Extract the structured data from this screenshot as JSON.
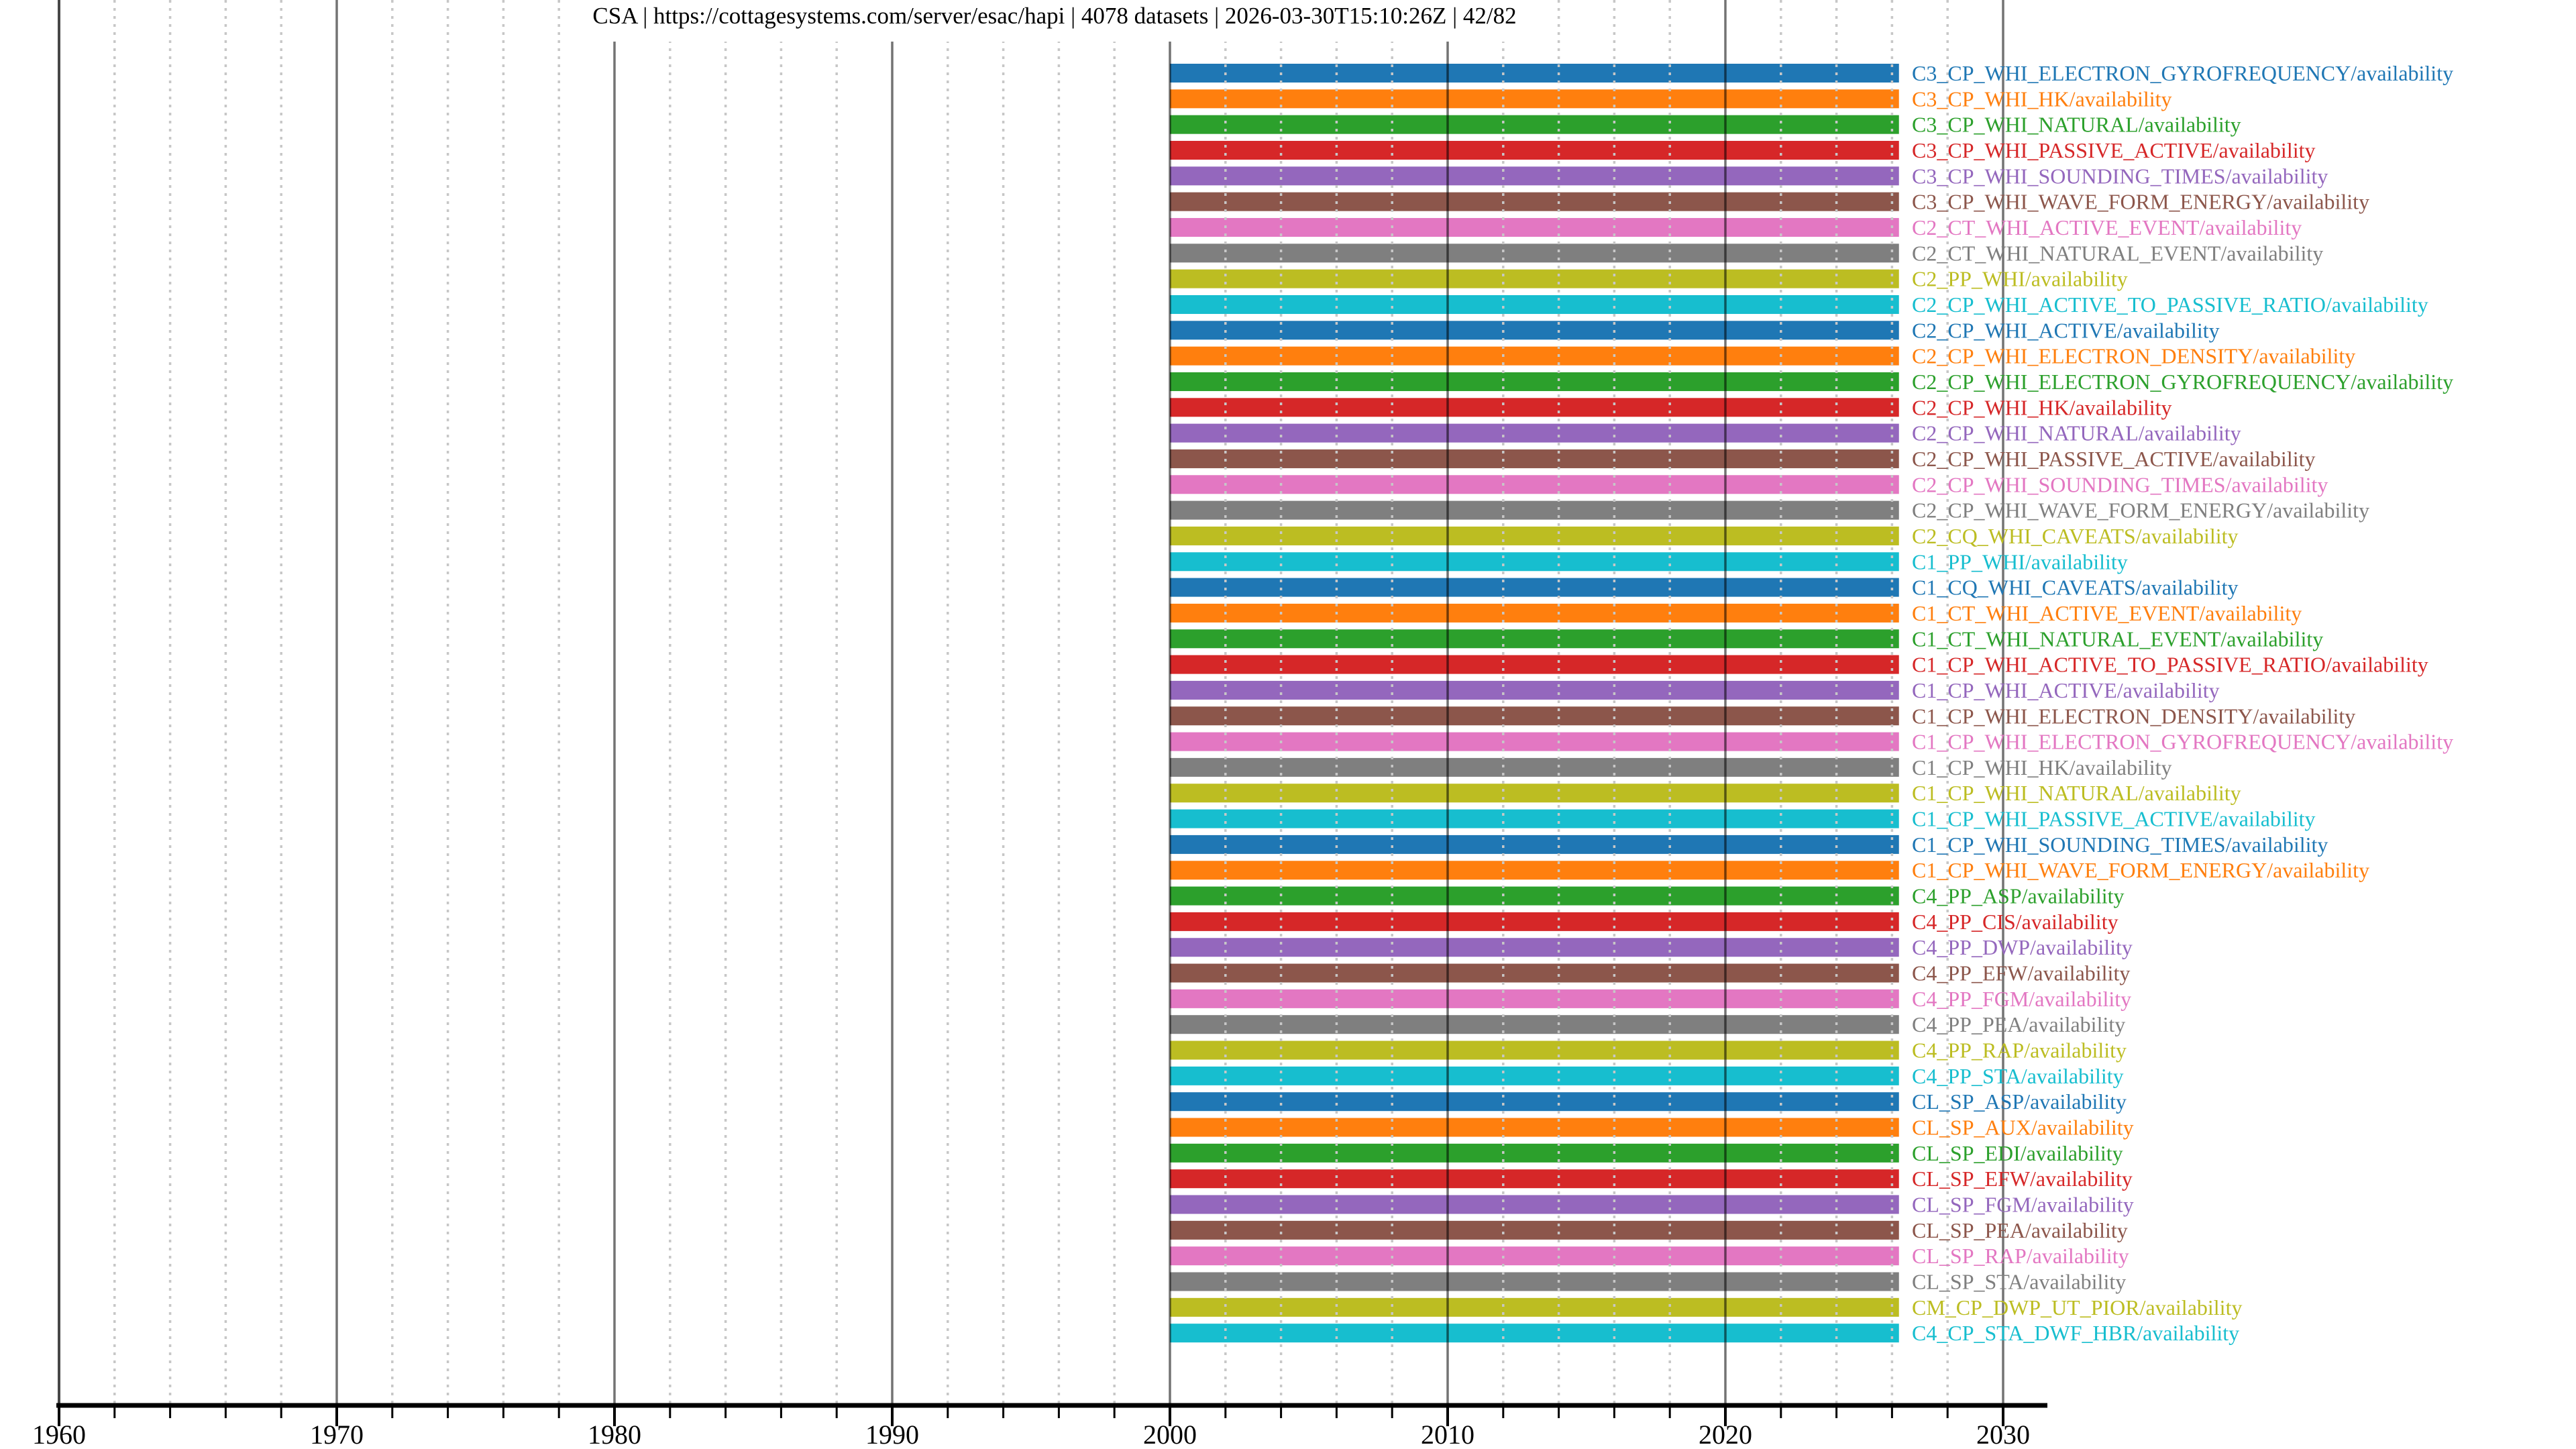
{
  "header": {
    "title": "CSA | https://cottagesystems.com/server/esac/hapi | 4078 datasets | 2026-03-30T15:10:26Z | 42/82",
    "source_label": "CSA",
    "server_url": "https://cottagesystems.com/server/esac/hapi",
    "dataset_count": "4078 datasets",
    "timestamp": "2026-03-30T15:10:26Z",
    "progress": "42/82"
  },
  "chart_data": {
    "type": "bar",
    "subtype": "horizontal-availability-timeline",
    "title": "CSA | https://cottagesystems.com/server/esac/hapi | 4078 datasets | 2026-03-30T15:10:26Z | 42/82",
    "xlabel": "",
    "ylabel": "",
    "xlim": [
      1960,
      2031.6
    ],
    "x_major_ticks": [
      "1960",
      "1970",
      "1980",
      "1990",
      "2000",
      "2010",
      "2020",
      "2030"
    ],
    "x_minor_tick_step_years": 2,
    "grid": "major vertical solid gray, minor vertical dotted light gray, drawn over bars",
    "legend_position": "none",
    "bar_start_year": 2000.0,
    "bar_end_year": 2026.25,
    "palette_tab10": [
      "#1f77b4",
      "#ff7f0e",
      "#2ca02c",
      "#d62728",
      "#9467bd",
      "#8c564b",
      "#e377c2",
      "#7f7f7f",
      "#bcbd22",
      "#17becf"
    ],
    "rows": [
      {
        "label": "C3_CP_WHI_ELECTRON_GYROFREQUENCY/availability",
        "color": "#1f77b4",
        "start": 2000.0,
        "end": 2026.25
      },
      {
        "label": "C3_CP_WHI_HK/availability",
        "color": "#ff7f0e",
        "start": 2000.0,
        "end": 2026.25
      },
      {
        "label": "C3_CP_WHI_NATURAL/availability",
        "color": "#2ca02c",
        "start": 2000.0,
        "end": 2026.25
      },
      {
        "label": "C3_CP_WHI_PASSIVE_ACTIVE/availability",
        "color": "#d62728",
        "start": 2000.0,
        "end": 2026.25
      },
      {
        "label": "C3_CP_WHI_SOUNDING_TIMES/availability",
        "color": "#9467bd",
        "start": 2000.0,
        "end": 2026.25
      },
      {
        "label": "C3_CP_WHI_WAVE_FORM_ENERGY/availability",
        "color": "#8c564b",
        "start": 2000.0,
        "end": 2026.25
      },
      {
        "label": "C2_CT_WHI_ACTIVE_EVENT/availability",
        "color": "#e377c2",
        "start": 2000.0,
        "end": 2026.25
      },
      {
        "label": "C2_CT_WHI_NATURAL_EVENT/availability",
        "color": "#7f7f7f",
        "start": 2000.0,
        "end": 2026.25
      },
      {
        "label": "C2_PP_WHI/availability",
        "color": "#bcbd22",
        "start": 2000.0,
        "end": 2026.25
      },
      {
        "label": "C2_CP_WHI_ACTIVE_TO_PASSIVE_RATIO/availability",
        "color": "#17becf",
        "start": 2000.0,
        "end": 2026.25
      },
      {
        "label": "C2_CP_WHI_ACTIVE/availability",
        "color": "#1f77b4",
        "start": 2000.0,
        "end": 2026.25
      },
      {
        "label": "C2_CP_WHI_ELECTRON_DENSITY/availability",
        "color": "#ff7f0e",
        "start": 2000.0,
        "end": 2026.25
      },
      {
        "label": "C2_CP_WHI_ELECTRON_GYROFREQUENCY/availability",
        "color": "#2ca02c",
        "start": 2000.0,
        "end": 2026.25
      },
      {
        "label": "C2_CP_WHI_HK/availability",
        "color": "#d62728",
        "start": 2000.0,
        "end": 2026.25
      },
      {
        "label": "C2_CP_WHI_NATURAL/availability",
        "color": "#9467bd",
        "start": 2000.0,
        "end": 2026.25
      },
      {
        "label": "C2_CP_WHI_PASSIVE_ACTIVE/availability",
        "color": "#8c564b",
        "start": 2000.0,
        "end": 2026.25
      },
      {
        "label": "C2_CP_WHI_SOUNDING_TIMES/availability",
        "color": "#e377c2",
        "start": 2000.0,
        "end": 2026.25
      },
      {
        "label": "C2_CP_WHI_WAVE_FORM_ENERGY/availability",
        "color": "#7f7f7f",
        "start": 2000.0,
        "end": 2026.25
      },
      {
        "label": "C2_CQ_WHI_CAVEATS/availability",
        "color": "#bcbd22",
        "start": 2000.0,
        "end": 2026.25
      },
      {
        "label": "C1_PP_WHI/availability",
        "color": "#17becf",
        "start": 2000.0,
        "end": 2026.25
      },
      {
        "label": "C1_CQ_WHI_CAVEATS/availability",
        "color": "#1f77b4",
        "start": 2000.0,
        "end": 2026.25
      },
      {
        "label": "C1_CT_WHI_ACTIVE_EVENT/availability",
        "color": "#ff7f0e",
        "start": 2000.0,
        "end": 2026.25
      },
      {
        "label": "C1_CT_WHI_NATURAL_EVENT/availability",
        "color": "#2ca02c",
        "start": 2000.0,
        "end": 2026.25
      },
      {
        "label": "C1_CP_WHI_ACTIVE_TO_PASSIVE_RATIO/availability",
        "color": "#d62728",
        "start": 2000.0,
        "end": 2026.25
      },
      {
        "label": "C1_CP_WHI_ACTIVE/availability",
        "color": "#9467bd",
        "start": 2000.0,
        "end": 2026.25
      },
      {
        "label": "C1_CP_WHI_ELECTRON_DENSITY/availability",
        "color": "#8c564b",
        "start": 2000.0,
        "end": 2026.25
      },
      {
        "label": "C1_CP_WHI_ELECTRON_GYROFREQUENCY/availability",
        "color": "#e377c2",
        "start": 2000.0,
        "end": 2026.25
      },
      {
        "label": "C1_CP_WHI_HK/availability",
        "color": "#7f7f7f",
        "start": 2000.0,
        "end": 2026.25
      },
      {
        "label": "C1_CP_WHI_NATURAL/availability",
        "color": "#bcbd22",
        "start": 2000.0,
        "end": 2026.25
      },
      {
        "label": "C1_CP_WHI_PASSIVE_ACTIVE/availability",
        "color": "#17becf",
        "start": 2000.0,
        "end": 2026.25
      },
      {
        "label": "C1_CP_WHI_SOUNDING_TIMES/availability",
        "color": "#1f77b4",
        "start": 2000.0,
        "end": 2026.25
      },
      {
        "label": "C1_CP_WHI_WAVE_FORM_ENERGY/availability",
        "color": "#ff7f0e",
        "start": 2000.0,
        "end": 2026.25
      },
      {
        "label": "C4_PP_ASP/availability",
        "color": "#2ca02c",
        "start": 2000.0,
        "end": 2026.25
      },
      {
        "label": "C4_PP_CIS/availability",
        "color": "#d62728",
        "start": 2000.0,
        "end": 2026.25
      },
      {
        "label": "C4_PP_DWP/availability",
        "color": "#9467bd",
        "start": 2000.0,
        "end": 2026.25
      },
      {
        "label": "C4_PP_EFW/availability",
        "color": "#8c564b",
        "start": 2000.0,
        "end": 2026.25
      },
      {
        "label": "C4_PP_FGM/availability",
        "color": "#e377c2",
        "start": 2000.0,
        "end": 2026.25
      },
      {
        "label": "C4_PP_PEA/availability",
        "color": "#7f7f7f",
        "start": 2000.0,
        "end": 2026.25
      },
      {
        "label": "C4_PP_RAP/availability",
        "color": "#bcbd22",
        "start": 2000.0,
        "end": 2026.25
      },
      {
        "label": "C4_PP_STA/availability",
        "color": "#17becf",
        "start": 2000.0,
        "end": 2026.25
      },
      {
        "label": "CL_SP_ASP/availability",
        "color": "#1f77b4",
        "start": 2000.0,
        "end": 2026.25
      },
      {
        "label": "CL_SP_AUX/availability",
        "color": "#ff7f0e",
        "start": 2000.0,
        "end": 2026.25
      },
      {
        "label": "CL_SP_EDI/availability",
        "color": "#2ca02c",
        "start": 2000.0,
        "end": 2026.25
      },
      {
        "label": "CL_SP_EFW/availability",
        "color": "#d62728",
        "start": 2000.0,
        "end": 2026.25
      },
      {
        "label": "CL_SP_FGM/availability",
        "color": "#9467bd",
        "start": 2000.0,
        "end": 2026.25
      },
      {
        "label": "CL_SP_PEA/availability",
        "color": "#8c564b",
        "start": 2000.0,
        "end": 2026.25
      },
      {
        "label": "CL_SP_RAP/availability",
        "color": "#e377c2",
        "start": 2000.0,
        "end": 2026.25
      },
      {
        "label": "CL_SP_STA/availability",
        "color": "#7f7f7f",
        "start": 2000.0,
        "end": 2026.25
      },
      {
        "label": "CM_CP_DWP_UT_PIOR/availability",
        "color": "#bcbd22",
        "start": 2000.0,
        "end": 2026.25
      },
      {
        "label": "C4_CP_STA_DWF_HBR/availability",
        "color": "#17becf",
        "start": 2000.0,
        "end": 2026.25
      }
    ]
  }
}
